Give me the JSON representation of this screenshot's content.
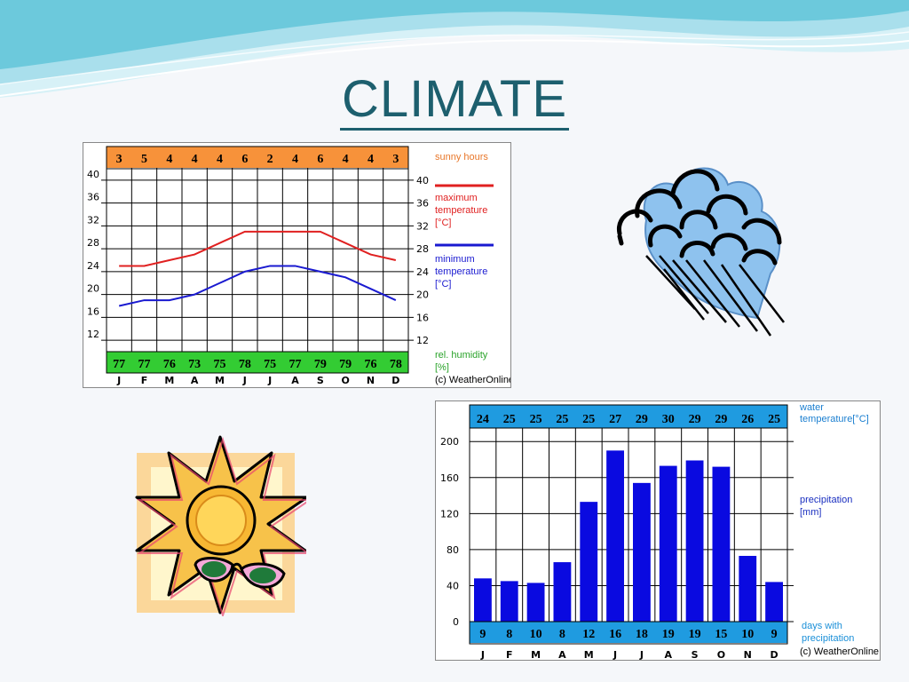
{
  "slide": {
    "title": "CLIMATE",
    "colors": {
      "background": "#f5f7fa",
      "title": "#1d5f6e",
      "wave_dark": "#5fc4d8",
      "wave_light": "#bfe9f2"
    }
  },
  "clipart": {
    "cloud": {
      "icon": "rain-cloud-icon"
    },
    "sun": {
      "icon": "sun-with-sunglasses-icon"
    }
  },
  "chart_data": [
    {
      "type": "line",
      "months": [
        "J",
        "F",
        "M",
        "A",
        "M",
        "J",
        "J",
        "A",
        "S",
        "O",
        "N",
        "D"
      ],
      "sunny_hours": [
        3,
        5,
        4,
        4,
        4,
        6,
        2,
        4,
        6,
        4,
        4,
        3
      ],
      "humidity": [
        77,
        77,
        76,
        73,
        75,
        78,
        75,
        77,
        79,
        79,
        76,
        78
      ],
      "ylim": [
        10,
        42
      ],
      "yticks": [
        12,
        16,
        20,
        24,
        28,
        32,
        36,
        40
      ],
      "series": [
        {
          "name": "maximum temperature [°C]",
          "color": "#e02020",
          "values": [
            25,
            25,
            26,
            27,
            29,
            31,
            31,
            31,
            31,
            29,
            27,
            26
          ]
        },
        {
          "name": "minimum temperature [°C]",
          "color": "#1a1ad0",
          "values": [
            18,
            19,
            19,
            20,
            22,
            24,
            25,
            25,
            24,
            23,
            21,
            19
          ]
        }
      ],
      "legend": {
        "sunny": "sunny hours",
        "max_lines": [
          "maximum",
          "temperature",
          "[°C]"
        ],
        "min_lines": [
          "minimum",
          "temperature",
          "[°C]"
        ],
        "hum_lines": [
          "rel. humidity",
          "[%]"
        ]
      },
      "copyright": "(c) WeatherOnline",
      "colors": {
        "sunny_band": "#f7923a",
        "humidity_band": "#33cc33",
        "legend_sunny": "#e8772a",
        "legend_humidity": "#2aa32a"
      }
    },
    {
      "type": "bar",
      "months": [
        "J",
        "F",
        "M",
        "A",
        "M",
        "J",
        "J",
        "A",
        "S",
        "O",
        "N",
        "D"
      ],
      "water_temperature": [
        24,
        25,
        25,
        25,
        25,
        27,
        29,
        30,
        29,
        29,
        26,
        25
      ],
      "rain_days": [
        9,
        8,
        10,
        8,
        12,
        16,
        18,
        19,
        19,
        15,
        10,
        9
      ],
      "values": [
        48,
        45,
        43,
        66,
        133,
        190,
        154,
        173,
        179,
        172,
        73,
        44
      ],
      "ylim": [
        0,
        215
      ],
      "yticks": [
        0,
        40,
        80,
        120,
        160,
        200
      ],
      "legend": {
        "water_lines": [
          "water",
          "temperature[°C]"
        ],
        "precip_lines": [
          "precipitation",
          "[mm]"
        ],
        "days_lines": [
          "days with",
          "precipitation"
        ]
      },
      "copyright": "(c) WeatherOnline",
      "colors": {
        "bar": "#0a0ae0",
        "band": "#1f9be0",
        "legend_water": "#1b7fd0",
        "legend_precip": "#1a2fc0",
        "legend_days": "#1a8fd8"
      }
    }
  ]
}
